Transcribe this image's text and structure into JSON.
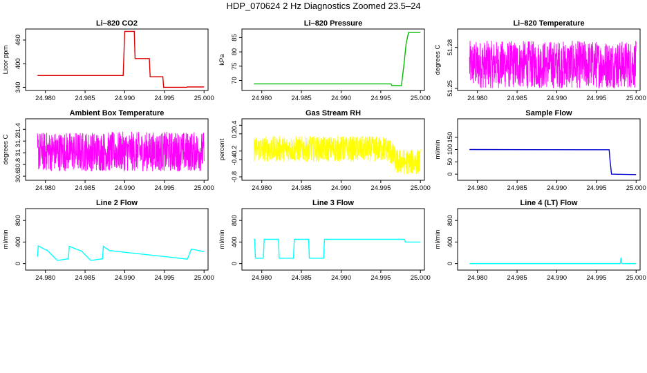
{
  "title": "HDP_070624  2 Hz Diagnostics Zoomed 23.5–24",
  "chart_data": [
    {
      "type": "line",
      "title": "Li–820 CO2",
      "ylabel": "Licor ppm",
      "color": "#dd0000",
      "xlim": [
        24.9775,
        25.0005
      ],
      "ylim": [
        332,
        488
      ],
      "xticks": [
        "24.980",
        "24.985",
        "24.990",
        "24.995",
        "25.000"
      ],
      "yticks": [
        340,
        400,
        460
      ],
      "series": [
        {
          "x": [
            24.979,
            24.9898,
            24.99,
            24.9912,
            24.9913,
            24.9931,
            24.9932,
            24.9948,
            24.9949,
            24.9978,
            24.9979,
            25.0
          ],
          "values": [
            370,
            370,
            482,
            482,
            413,
            413,
            367,
            367,
            340,
            340,
            341,
            341
          ]
        }
      ]
    },
    {
      "type": "line",
      "title": "Li–820 Pressure",
      "ylabel": "kPa",
      "color": "#00bb00",
      "xlim": [
        24.9775,
        25.0005
      ],
      "ylim": [
        66.5,
        88
      ],
      "xticks": [
        "24.980",
        "24.985",
        "24.990",
        "24.995",
        "25.000"
      ],
      "yticks": [
        70,
        75,
        80,
        85
      ],
      "series": [
        {
          "x": [
            24.979,
            24.9963,
            24.9964,
            24.9976,
            24.9979,
            24.9982,
            24.9985,
            25.0
          ],
          "values": [
            68.8,
            68.8,
            68.2,
            68.2,
            75,
            83,
            86.8,
            86.8
          ]
        }
      ]
    },
    {
      "type": "line",
      "title": "Li–820 Temperature",
      "ylabel": "degrees C",
      "color": "#ff00ff",
      "xlim": [
        24.9775,
        25.0005
      ],
      "ylim": [
        51.2485,
        51.2935
      ],
      "xticks": [
        "24.980",
        "24.985",
        "24.990",
        "24.995",
        "25.000"
      ],
      "yticks": [
        51.25,
        51.28
      ],
      "series": [
        {
          "x": [
            24.979,
            25.0
          ],
          "values": [
            51.2675,
            51.2675
          ],
          "noise": 0.0175
        }
      ]
    },
    {
      "type": "line",
      "title": "Ambient Box Temperature",
      "ylabel": "degrees C",
      "color": "#ff00ff",
      "xlim": [
        24.9775,
        25.0005
      ],
      "ylim": [
        30.53,
        31.58
      ],
      "xticks": [
        "24.980",
        "24.985",
        "24.990",
        "24.995",
        "25.000"
      ],
      "yticks": [
        30.6,
        30.8,
        31.0,
        31.2,
        31.4
      ],
      "series": [
        {
          "x": [
            24.979,
            25.0
          ],
          "values": [
            31.02,
            31.02
          ],
          "noise": 0.34
        }
      ]
    },
    {
      "type": "line",
      "title": "Gas Stream RH",
      "ylabel": "percent",
      "color": "#ffff00",
      "xlim": [
        24.9775,
        25.0005
      ],
      "ylim": [
        -0.88,
        0.55
      ],
      "xticks": [
        "24.980",
        "24.985",
        "24.990",
        "24.995",
        "25.000"
      ],
      "yticks": [
        -0.8,
        -0.4,
        -0.2,
        0.2,
        0.4
      ],
      "series": [
        {
          "x": [
            24.979,
            24.996,
            24.997,
            25.0
          ],
          "values": [
            -0.15,
            -0.15,
            -0.45,
            -0.45
          ],
          "noise": 0.3
        }
      ]
    },
    {
      "type": "line",
      "title": "Sample Flow",
      "ylabel": "ml/min",
      "color": "#0000cc",
      "xlim": [
        24.9775,
        25.0005
      ],
      "ylim": [
        -25,
        225
      ],
      "xticks": [
        "24.980",
        "24.985",
        "24.990",
        "24.995",
        "25.000"
      ],
      "yticks": [
        0,
        50,
        100,
        150
      ],
      "series": [
        {
          "x": [
            24.979,
            24.9966,
            24.9967,
            24.9969,
            25.0
          ],
          "values": [
            100,
            99,
            60,
            0,
            -2
          ]
        }
      ]
    },
    {
      "type": "line",
      "title": "Line 2 Flow",
      "ylabel": "ml/min",
      "color": "#00ffff",
      "xlim": [
        24.9775,
        25.0005
      ],
      "ylim": [
        -120,
        1020
      ],
      "xticks": [
        "24.980",
        "24.985",
        "24.990",
        "24.995",
        "25.000"
      ],
      "yticks": [
        0,
        400,
        800
      ],
      "series": [
        {
          "x": [
            24.979,
            24.9791,
            24.9801,
            24.9802,
            24.9815,
            24.9816,
            24.9829,
            24.983,
            24.9844,
            24.9845,
            24.9857,
            24.9858,
            24.9872,
            24.9873,
            24.9881,
            24.9882,
            24.9978,
            24.9979,
            24.9984,
            25.0
          ],
          "values": [
            130,
            330,
            250,
            250,
            60,
            60,
            90,
            320,
            240,
            240,
            60,
            60,
            90,
            320,
            240,
            240,
            85,
            85,
            270,
            220
          ]
        }
      ]
    },
    {
      "type": "line",
      "title": "Line 3 Flow",
      "ylabel": "ml/min",
      "color": "#00ffff",
      "xlim": [
        24.9775,
        25.0005
      ],
      "ylim": [
        -120,
        1020
      ],
      "xticks": [
        "24.980",
        "24.985",
        "24.990",
        "24.995",
        "25.000"
      ],
      "yticks": [
        0,
        400,
        800
      ],
      "series": [
        {
          "x": [
            24.979,
            24.9791,
            24.9792,
            24.9802,
            24.9803,
            24.9821,
            24.9822,
            24.984,
            24.9841,
            24.9859,
            24.986,
            24.9878,
            24.9879,
            24.998,
            24.9981,
            25.0
          ],
          "values": [
            450,
            450,
            100,
            100,
            450,
            450,
            100,
            100,
            450,
            450,
            100,
            100,
            450,
            450,
            400,
            400
          ]
        }
      ]
    },
    {
      "type": "line",
      "title": "Line 4 (LT) Flow",
      "ylabel": "ml/min",
      "color": "#00ffff",
      "xlim": [
        24.9775,
        25.0005
      ],
      "ylim": [
        -120,
        1020
      ],
      "xticks": [
        "24.980",
        "24.985",
        "24.990",
        "24.995",
        "25.000"
      ],
      "yticks": [
        0,
        400,
        800
      ],
      "series": [
        {
          "x": [
            24.979,
            24.998,
            24.9981,
            24.9982,
            24.9983,
            25.0
          ],
          "values": [
            0,
            0,
            110,
            5,
            0,
            0
          ]
        }
      ]
    }
  ]
}
